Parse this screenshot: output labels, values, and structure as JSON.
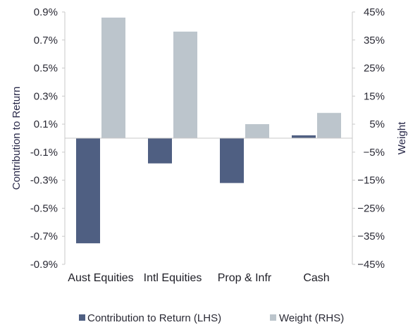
{
  "chart_data": {
    "type": "bar",
    "categories": [
      "Aust Equities",
      "Intl Equities",
      "Prop & Infr",
      "Cash"
    ],
    "series": [
      {
        "name": "Contribution to Return (LHS)",
        "axis": "left",
        "color": "#4f5f82",
        "values": [
          -0.75,
          -0.18,
          -0.32,
          0.02
        ]
      },
      {
        "name": "Weight (RHS)",
        "axis": "right",
        "color": "#bcc5cc",
        "values": [
          43,
          38,
          5,
          9
        ]
      }
    ],
    "y_left": {
      "label": "Contribution to Return",
      "ylim": [
        -0.9,
        0.9
      ],
      "ticks": [
        0.9,
        0.7,
        0.5,
        0.3,
        0.1,
        -0.1,
        -0.3,
        -0.5,
        -0.7,
        -0.9
      ],
      "tick_labels": [
        "0.9%",
        "0.7%",
        "0.5%",
        "0.3%",
        "0.1%",
        "-0.1%",
        "-0.3%",
        "-0.5%",
        "-0.7%",
        "-0.9%"
      ]
    },
    "y_right": {
      "label": "Weight",
      "ylim": [
        -45,
        45
      ],
      "ticks": [
        45,
        35,
        25,
        15,
        5,
        -5,
        -15,
        -25,
        -35,
        -45
      ],
      "tick_labels": [
        "45%",
        "35%",
        "25%",
        "15%",
        "5%",
        "−5%",
        "−15%",
        "−25%",
        "−35%",
        "−45%"
      ]
    },
    "grid": false,
    "legend_position": "bottom-center"
  }
}
